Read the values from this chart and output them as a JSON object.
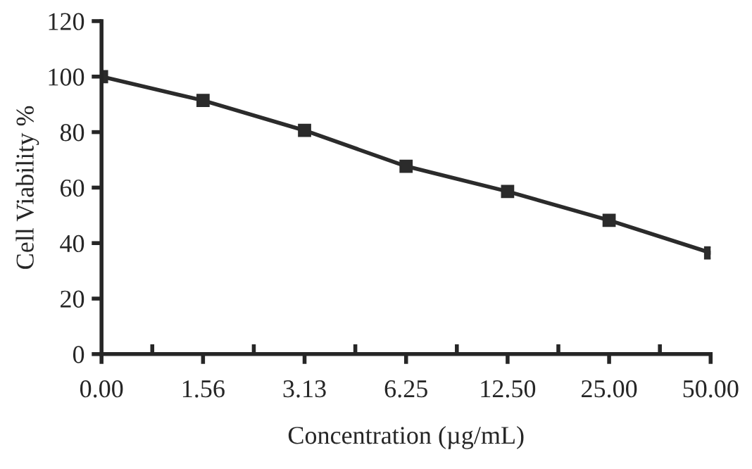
{
  "chart_data": {
    "type": "line",
    "xlabel": "Concentration (µg/mL)",
    "ylabel": "Cell Viability %",
    "categories": [
      "0.00",
      "1.56",
      "3.13",
      "6.25",
      "12.50",
      "25.00",
      "50.00"
    ],
    "series": [
      {
        "color": "#2b2b2b",
        "values": [
          100,
          91.4,
          80.6,
          67.7,
          58.6,
          48.2,
          36.5
        ]
      }
    ],
    "ylim": [
      0,
      120
    ],
    "yticks": [
      0,
      20,
      40,
      60,
      80,
      100,
      120
    ],
    "grid": false,
    "legend": false,
    "marker": "square",
    "line_style": "solid"
  }
}
